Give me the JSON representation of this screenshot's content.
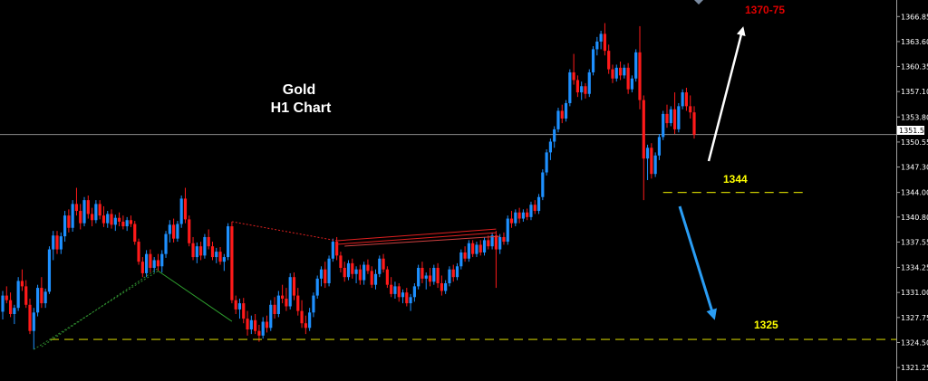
{
  "chart_data": {
    "type": "candlestick",
    "title_lines": [
      "Gold",
      "H1 Chart"
    ],
    "y_axis": {
      "range": [
        1319.5,
        1369.0
      ],
      "ticks": [
        "1366.85",
        "1363.60",
        "1360.35",
        "1357.10",
        "1353.80",
        "1350.55",
        "1347.30",
        "1344.00",
        "1340.80",
        "1337.55",
        "1334.25",
        "1331.00",
        "1327.75",
        "1324.50",
        "1321.25"
      ],
      "current_price": "1351.53"
    },
    "annotations": {
      "target_label": "1370-75",
      "level_1344_label": "1344",
      "level_1325_label": "1325",
      "level_1344_value": 1344.0,
      "level_1325_value": 1324.9
    },
    "colors": {
      "bull": "#1e90ff",
      "bear": "#ff1a1a",
      "target_text": "#e00000",
      "level_text": "#ffff00",
      "level_line": "#c8c800",
      "white_arrow": "#ffffff",
      "blue_arrow": "#2a9df4",
      "current_line": "#8c8c8c"
    },
    "candles": [
      [
        1328.5,
        1331.2,
        1327.5,
        1330.6
      ],
      [
        1330.6,
        1331.8,
        1329.6,
        1330.0
      ],
      [
        1330.0,
        1331.0,
        1327.8,
        1328.2
      ],
      [
        1328.2,
        1329.4,
        1326.9,
        1329.0
      ],
      [
        1329.0,
        1333.0,
        1328.6,
        1332.5
      ],
      [
        1332.5,
        1334.0,
        1331.2,
        1331.8
      ],
      [
        1331.8,
        1332.6,
        1329.0,
        1329.4
      ],
      [
        1329.4,
        1330.2,
        1325.6,
        1326.0
      ],
      [
        1326.0,
        1329.0,
        1323.6,
        1328.4
      ],
      [
        1328.4,
        1332.0,
        1327.9,
        1331.6
      ],
      [
        1331.6,
        1333.0,
        1329.0,
        1329.6
      ],
      [
        1329.6,
        1331.5,
        1329.0,
        1331.1
      ],
      [
        1331.1,
        1337.0,
        1330.8,
        1336.6
      ],
      [
        1336.6,
        1339.0,
        1335.2,
        1338.4
      ],
      [
        1338.4,
        1339.0,
        1336.0,
        1336.6
      ],
      [
        1336.6,
        1338.8,
        1336.0,
        1338.3
      ],
      [
        1338.3,
        1341.6,
        1337.6,
        1341.0
      ],
      [
        1341.0,
        1341.8,
        1338.8,
        1339.4
      ],
      [
        1339.4,
        1343.0,
        1338.9,
        1342.5
      ],
      [
        1342.5,
        1344.6,
        1341.0,
        1341.6
      ],
      [
        1341.6,
        1342.5,
        1339.2,
        1340.0
      ],
      [
        1340.0,
        1343.4,
        1339.6,
        1343.0
      ],
      [
        1343.0,
        1343.6,
        1340.6,
        1341.2
      ],
      [
        1341.2,
        1342.0,
        1339.6,
        1340.4
      ],
      [
        1340.4,
        1343.0,
        1340.0,
        1342.5
      ],
      [
        1342.5,
        1343.0,
        1340.5,
        1341.0
      ],
      [
        1341.0,
        1342.2,
        1339.5,
        1340.0
      ],
      [
        1340.0,
        1341.6,
        1339.4,
        1341.2
      ],
      [
        1341.2,
        1341.8,
        1339.3,
        1339.8
      ],
      [
        1339.8,
        1341.1,
        1339.0,
        1340.7
      ],
      [
        1340.7,
        1341.4,
        1339.6,
        1340.2
      ],
      [
        1340.2,
        1341.0,
        1339.2,
        1339.6
      ],
      [
        1339.6,
        1340.8,
        1339.0,
        1340.4
      ],
      [
        1340.4,
        1341.0,
        1339.5,
        1339.9
      ],
      [
        1339.9,
        1340.3,
        1337.2,
        1337.6
      ],
      [
        1337.6,
        1338.0,
        1334.6,
        1335.0
      ],
      [
        1335.0,
        1335.6,
        1333.0,
        1333.5
      ],
      [
        1333.5,
        1336.5,
        1333.0,
        1336.0
      ],
      [
        1336.0,
        1336.6,
        1333.6,
        1334.2
      ],
      [
        1334.2,
        1335.6,
        1333.6,
        1335.2
      ],
      [
        1335.2,
        1336.0,
        1333.8,
        1334.4
      ],
      [
        1334.4,
        1336.5,
        1333.6,
        1336.0
      ],
      [
        1336.0,
        1339.0,
        1335.5,
        1338.6
      ],
      [
        1338.6,
        1340.4,
        1337.5,
        1339.8
      ],
      [
        1339.8,
        1340.6,
        1337.5,
        1338.0
      ],
      [
        1338.0,
        1340.3,
        1337.6,
        1339.9
      ],
      [
        1339.9,
        1343.6,
        1339.4,
        1343.2
      ],
      [
        1343.2,
        1344.6,
        1340.0,
        1340.5
      ],
      [
        1340.5,
        1341.0,
        1337.0,
        1337.4
      ],
      [
        1337.4,
        1338.2,
        1335.2,
        1335.6
      ],
      [
        1335.6,
        1337.5,
        1334.8,
        1337.0
      ],
      [
        1337.0,
        1337.6,
        1335.2,
        1335.8
      ],
      [
        1335.8,
        1338.6,
        1335.4,
        1338.2
      ],
      [
        1338.2,
        1339.2,
        1336.6,
        1337.0
      ],
      [
        1337.0,
        1337.6,
        1335.2,
        1335.6
      ],
      [
        1335.6,
        1336.8,
        1334.8,
        1336.3
      ],
      [
        1336.3,
        1336.9,
        1334.6,
        1335.0
      ],
      [
        1335.0,
        1336.0,
        1333.8,
        1335.6
      ],
      [
        1335.6,
        1340.0,
        1335.2,
        1339.6
      ],
      [
        1339.6,
        1340.2,
        1329.6,
        1330.0
      ],
      [
        1330.0,
        1330.6,
        1328.2,
        1328.8
      ],
      [
        1328.8,
        1330.2,
        1327.6,
        1329.6
      ],
      [
        1329.6,
        1330.3,
        1327.0,
        1327.6
      ],
      [
        1327.6,
        1328.6,
        1325.4,
        1326.2
      ],
      [
        1326.2,
        1328.0,
        1325.6,
        1327.4
      ],
      [
        1327.4,
        1328.2,
        1325.6,
        1326.0
      ],
      [
        1326.0,
        1326.8,
        1324.6,
        1325.4
      ],
      [
        1325.4,
        1327.8,
        1325.0,
        1327.2
      ],
      [
        1327.2,
        1328.0,
        1325.8,
        1326.4
      ],
      [
        1326.4,
        1330.0,
        1326.0,
        1329.4
      ],
      [
        1329.4,
        1330.4,
        1327.6,
        1328.2
      ],
      [
        1328.2,
        1331.2,
        1327.8,
        1330.6
      ],
      [
        1330.6,
        1332.0,
        1329.6,
        1330.2
      ],
      [
        1330.2,
        1331.6,
        1328.6,
        1329.2
      ],
      [
        1329.2,
        1333.5,
        1328.8,
        1333.0
      ],
      [
        1333.0,
        1333.6,
        1330.0,
        1330.6
      ],
      [
        1330.6,
        1331.6,
        1328.0,
        1328.6
      ],
      [
        1328.6,
        1330.0,
        1326.4,
        1327.0
      ],
      [
        1327.0,
        1328.0,
        1325.6,
        1326.4
      ],
      [
        1326.4,
        1329.0,
        1326.0,
        1328.4
      ],
      [
        1328.4,
        1331.0,
        1327.8,
        1330.6
      ],
      [
        1330.6,
        1333.2,
        1330.2,
        1332.8
      ],
      [
        1332.8,
        1334.4,
        1331.8,
        1334.0
      ],
      [
        1334.0,
        1335.0,
        1331.6,
        1332.2
      ],
      [
        1332.2,
        1335.8,
        1331.8,
        1335.4
      ],
      [
        1335.4,
        1338.0,
        1335.0,
        1337.6
      ],
      [
        1337.6,
        1338.2,
        1335.2,
        1335.8
      ],
      [
        1335.8,
        1336.3,
        1333.6,
        1334.2
      ],
      [
        1334.2,
        1335.0,
        1332.4,
        1333.0
      ],
      [
        1333.0,
        1335.2,
        1332.6,
        1334.8
      ],
      [
        1334.8,
        1335.4,
        1332.8,
        1333.4
      ],
      [
        1333.4,
        1334.4,
        1332.2,
        1334.0
      ],
      [
        1334.0,
        1334.6,
        1332.0,
        1332.6
      ],
      [
        1332.6,
        1335.0,
        1332.0,
        1334.6
      ],
      [
        1334.6,
        1335.3,
        1333.4,
        1333.8
      ],
      [
        1333.8,
        1334.4,
        1331.6,
        1332.0
      ],
      [
        1332.0,
        1334.0,
        1331.4,
        1333.4
      ],
      [
        1333.4,
        1335.8,
        1333.0,
        1335.4
      ],
      [
        1335.4,
        1336.0,
        1333.6,
        1334.0
      ],
      [
        1334.0,
        1334.4,
        1331.6,
        1332.0
      ],
      [
        1332.0,
        1333.0,
        1330.4,
        1330.8
      ],
      [
        1330.8,
        1332.4,
        1330.2,
        1331.8
      ],
      [
        1331.8,
        1332.2,
        1329.8,
        1330.4
      ],
      [
        1330.4,
        1331.4,
        1329.6,
        1331.0
      ],
      [
        1331.0,
        1331.6,
        1329.2,
        1329.6
      ],
      [
        1329.6,
        1330.8,
        1328.6,
        1330.4
      ],
      [
        1330.4,
        1332.2,
        1329.8,
        1331.8
      ],
      [
        1331.8,
        1334.6,
        1331.4,
        1334.2
      ],
      [
        1334.2,
        1335.0,
        1332.2,
        1332.8
      ],
      [
        1332.8,
        1333.6,
        1331.4,
        1333.2
      ],
      [
        1333.2,
        1334.2,
        1331.8,
        1332.4
      ],
      [
        1332.4,
        1334.6,
        1332.0,
        1334.2
      ],
      [
        1334.2,
        1334.8,
        1331.6,
        1332.2
      ],
      [
        1332.2,
        1333.2,
        1330.6,
        1331.2
      ],
      [
        1331.2,
        1332.6,
        1330.8,
        1332.2
      ],
      [
        1332.2,
        1334.4,
        1331.8,
        1334.0
      ],
      [
        1334.0,
        1334.6,
        1332.4,
        1333.0
      ],
      [
        1333.0,
        1334.8,
        1332.6,
        1334.4
      ],
      [
        1334.4,
        1336.6,
        1334.0,
        1336.2
      ],
      [
        1336.2,
        1337.0,
        1335.0,
        1335.4
      ],
      [
        1335.4,
        1337.8,
        1335.0,
        1337.4
      ],
      [
        1337.4,
        1337.8,
        1335.6,
        1336.0
      ],
      [
        1336.0,
        1337.6,
        1335.6,
        1337.2
      ],
      [
        1337.2,
        1337.8,
        1335.8,
        1336.2
      ],
      [
        1336.2,
        1338.2,
        1335.8,
        1337.8
      ],
      [
        1337.8,
        1338.4,
        1336.6,
        1337.0
      ],
      [
        1337.0,
        1338.8,
        1336.6,
        1338.4
      ],
      [
        1338.4,
        1339.0,
        1331.6,
        1336.6
      ],
      [
        1336.6,
        1338.6,
        1336.0,
        1338.2
      ],
      [
        1338.2,
        1338.8,
        1337.2,
        1337.6
      ],
      [
        1337.6,
        1341.0,
        1337.2,
        1340.6
      ],
      [
        1340.6,
        1341.6,
        1339.4,
        1340.0
      ],
      [
        1340.0,
        1341.8,
        1339.6,
        1341.4
      ],
      [
        1341.4,
        1342.0,
        1340.0,
        1340.6
      ],
      [
        1340.6,
        1341.8,
        1340.2,
        1341.4
      ],
      [
        1341.4,
        1341.9,
        1340.4,
        1340.8
      ],
      [
        1340.8,
        1342.8,
        1340.4,
        1342.4
      ],
      [
        1342.4,
        1343.0,
        1341.2,
        1341.6
      ],
      [
        1341.6,
        1343.8,
        1341.2,
        1343.4
      ],
      [
        1343.4,
        1347.0,
        1343.0,
        1346.6
      ],
      [
        1346.6,
        1349.6,
        1346.2,
        1349.2
      ],
      [
        1349.2,
        1351.0,
        1348.2,
        1350.6
      ],
      [
        1350.6,
        1352.6,
        1349.8,
        1352.2
      ],
      [
        1352.2,
        1355.0,
        1351.8,
        1354.6
      ],
      [
        1354.6,
        1355.4,
        1353.0,
        1353.6
      ],
      [
        1353.6,
        1356.0,
        1353.2,
        1355.6
      ],
      [
        1355.6,
        1360.0,
        1355.2,
        1359.6
      ],
      [
        1359.6,
        1362.0,
        1358.0,
        1358.6
      ],
      [
        1358.6,
        1359.2,
        1356.4,
        1357.0
      ],
      [
        1357.0,
        1358.4,
        1356.0,
        1357.8
      ],
      [
        1357.8,
        1358.2,
        1356.2,
        1356.8
      ],
      [
        1356.8,
        1360.0,
        1356.4,
        1359.6
      ],
      [
        1359.6,
        1363.0,
        1359.2,
        1362.6
      ],
      [
        1362.6,
        1364.2,
        1361.8,
        1363.6
      ],
      [
        1363.6,
        1365.0,
        1362.6,
        1364.6
      ],
      [
        1364.6,
        1366.0,
        1361.8,
        1362.4
      ],
      [
        1362.4,
        1363.2,
        1359.4,
        1360.0
      ],
      [
        1360.0,
        1360.6,
        1358.2,
        1358.8
      ],
      [
        1358.8,
        1360.6,
        1358.4,
        1360.2
      ],
      [
        1360.2,
        1361.0,
        1358.6,
        1359.2
      ],
      [
        1359.2,
        1360.6,
        1358.8,
        1360.2
      ],
      [
        1360.2,
        1360.8,
        1356.8,
        1357.4
      ],
      [
        1357.4,
        1359.2,
        1357.0,
        1358.8
      ],
      [
        1358.8,
        1362.6,
        1358.4,
        1362.2
      ],
      [
        1362.2,
        1365.6,
        1354.8,
        1356.0
      ],
      [
        1356.0,
        1356.6,
        1343.0,
        1348.4
      ],
      [
        1348.4,
        1350.2,
        1345.6,
        1349.8
      ],
      [
        1349.8,
        1350.4,
        1345.8,
        1346.4
      ],
      [
        1346.4,
        1349.2,
        1346.0,
        1348.8
      ],
      [
        1348.8,
        1351.6,
        1348.2,
        1351.2
      ],
      [
        1351.2,
        1354.6,
        1350.8,
        1354.2
      ],
      [
        1354.2,
        1355.4,
        1352.4,
        1353.0
      ],
      [
        1353.0,
        1355.2,
        1352.6,
        1354.8
      ],
      [
        1354.8,
        1357.0,
        1351.6,
        1352.2
      ],
      [
        1352.2,
        1355.6,
        1351.8,
        1355.2
      ],
      [
        1355.2,
        1357.4,
        1354.8,
        1357.0
      ],
      [
        1357.0,
        1357.6,
        1354.6,
        1355.2
      ],
      [
        1355.2,
        1356.6,
        1353.6,
        1354.4
      ],
      [
        1354.4,
        1355.2,
        1351.0,
        1351.5
      ]
    ]
  }
}
